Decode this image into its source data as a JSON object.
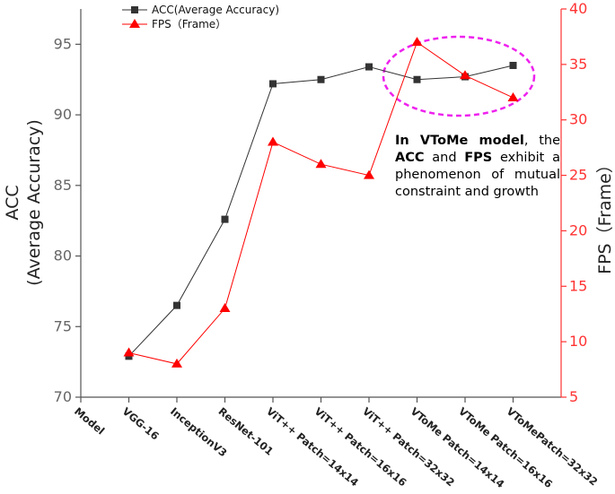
{
  "chart_data": {
    "type": "line",
    "categories": [
      "Model",
      "VGG-16",
      "InceptionV3",
      "ResNet-101",
      "ViT++ Patch=14x14",
      "ViT++ Patch=16x16",
      "ViT++ Patch=32x32",
      "VToMe Patch=14x14",
      "VToMe Patch=16x16",
      "VToMePatch=32x32"
    ],
    "series": [
      {
        "name": "ACC(Average Accuracy)",
        "axis": "left",
        "color": "#333333",
        "marker": "square",
        "values": [
          null,
          72.9,
          76.5,
          82.6,
          92.2,
          92.5,
          93.4,
          92.5,
          92.7,
          93.5
        ]
      },
      {
        "name": "FPS（Frame）",
        "axis": "right",
        "color": "#ff0000",
        "marker": "triangle",
        "values": [
          null,
          9,
          8,
          13,
          28,
          26,
          25,
          37,
          34,
          32
        ]
      }
    ],
    "ylabel": [
      "ACC",
      "(Average Accuracy)"
    ],
    "ylabel_right": "FPS（Frame）",
    "ylim": [
      70,
      97.5
    ],
    "ylim_right": [
      5,
      40
    ],
    "yticks": [
      70,
      75,
      80,
      85,
      90,
      95
    ],
    "yticks_right": [
      5,
      10,
      15,
      20,
      25,
      30,
      35,
      40
    ],
    "legend": "top-left",
    "grid": false,
    "annotation": {
      "bold1": "In VToMe model",
      "text1": ", the",
      "bold2": "ACC",
      "text2": " and ",
      "bold3": "FPS",
      "text3": " exhibit a phenomenon of mutual constraint and growth"
    },
    "highlight": "dashed magenta ellipse around VToMe points",
    "colors": {
      "acc": "#333333",
      "fps": "#ff0000",
      "highlight": "#ee22ee",
      "right_axis": "#ff3333"
    }
  }
}
